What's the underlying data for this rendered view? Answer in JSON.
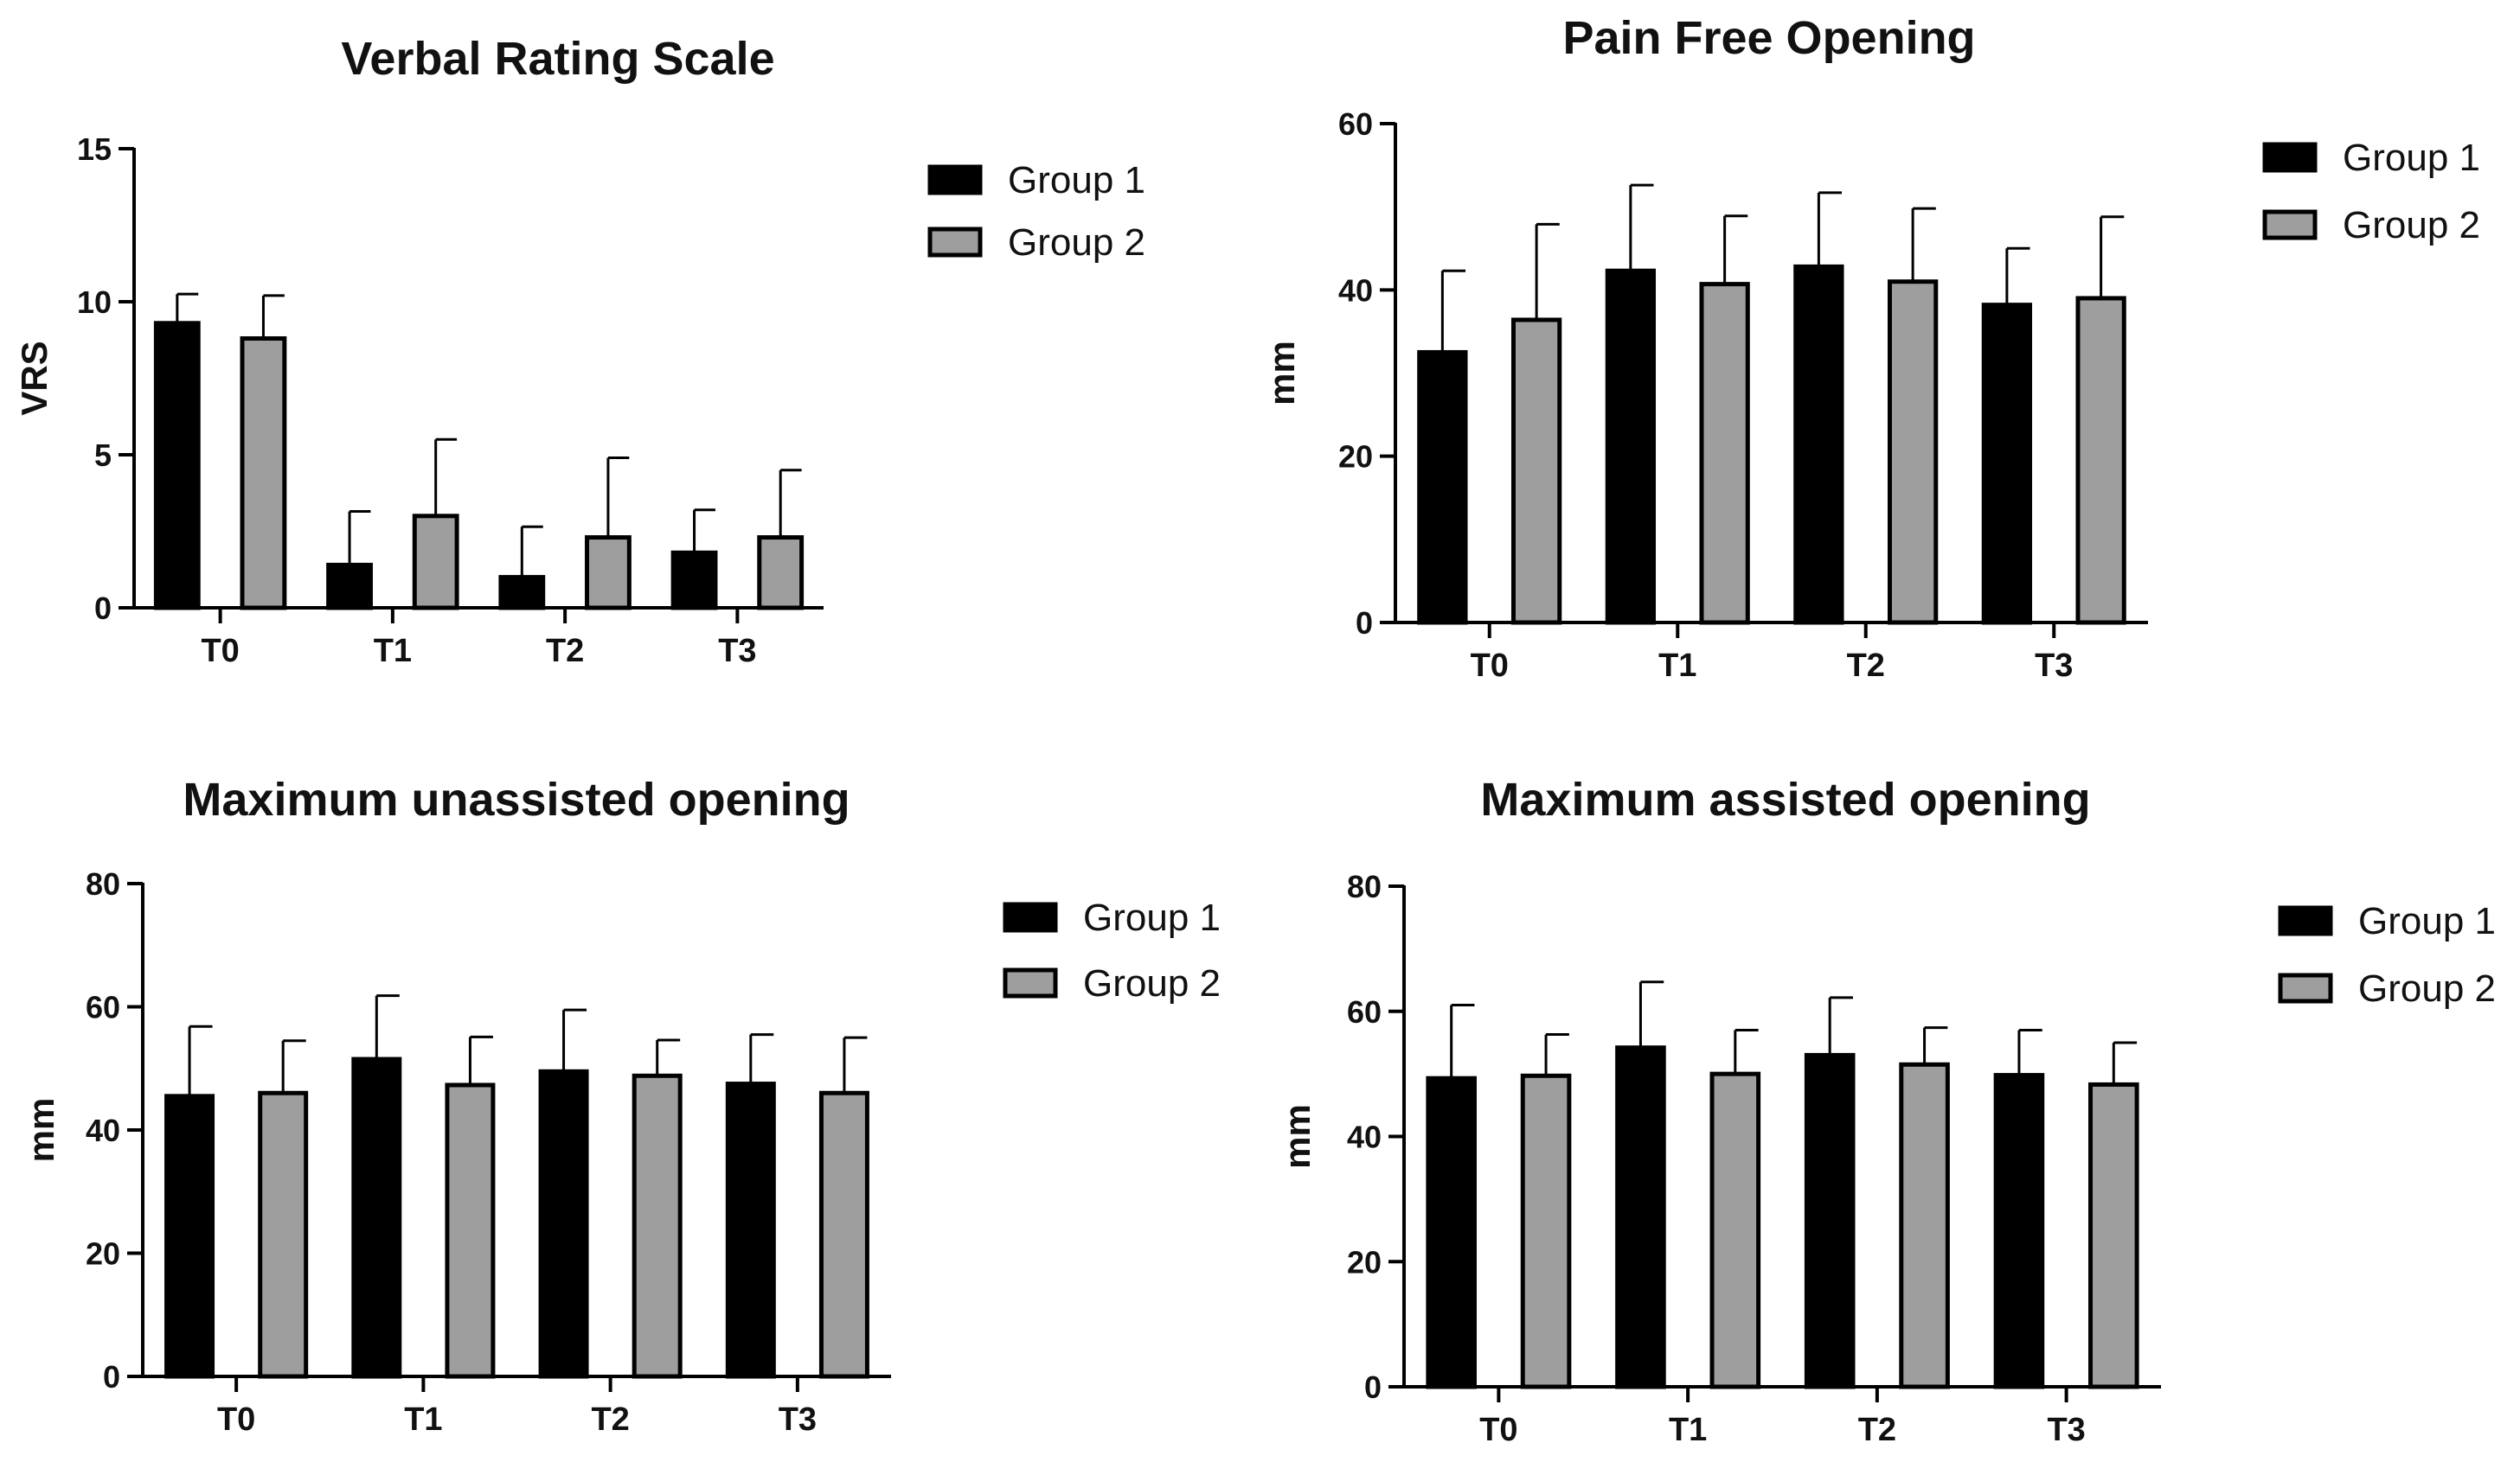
{
  "colors": {
    "group1": "#000000",
    "group2": "#9e9e9e",
    "axis": "#000000"
  },
  "chart_data": [
    {
      "type": "bar",
      "title": "Verbal Rating Scale",
      "xlabel": "",
      "ylabel": "VRS",
      "ylim": [
        0,
        15
      ],
      "yticks": [
        0,
        5,
        10,
        15
      ],
      "categories": [
        "T0",
        "T1",
        "T2",
        "T3"
      ],
      "legend": "right",
      "series": [
        {
          "name": "Group 1",
          "values": [
            9.3,
            1.4,
            1.0,
            1.8
          ],
          "errors": [
            0.95,
            1.75,
            1.65,
            1.4
          ]
        },
        {
          "name": "Group 2",
          "values": [
            8.8,
            3.0,
            2.3,
            2.3
          ],
          "errors": [
            1.4,
            2.5,
            2.6,
            2.2
          ]
        }
      ]
    },
    {
      "type": "bar",
      "title": "Pain Free Opening",
      "xlabel": "",
      "ylabel": "mm",
      "ylim": [
        0,
        60
      ],
      "yticks": [
        0,
        20,
        40,
        60
      ],
      "categories": [
        "T0",
        "T1",
        "T2",
        "T3"
      ],
      "legend": "right",
      "series": [
        {
          "name": "Group 1",
          "values": [
            32.5,
            42.3,
            42.8,
            38.2
          ],
          "errors": [
            9.8,
            10.3,
            8.9,
            6.8
          ]
        },
        {
          "name": "Group 2",
          "values": [
            36.4,
            40.7,
            41.0,
            39.0
          ],
          "errors": [
            11.5,
            8.2,
            8.8,
            9.8
          ]
        }
      ]
    },
    {
      "type": "bar",
      "title": "Maximum unassisted opening",
      "xlabel": "",
      "ylabel": "mm",
      "ylim": [
        0,
        80
      ],
      "yticks": [
        0,
        20,
        40,
        60,
        80
      ],
      "categories": [
        "T0",
        "T1",
        "T2",
        "T3"
      ],
      "legend": "right",
      "series": [
        {
          "name": "Group 1",
          "values": [
            45.5,
            51.5,
            49.5,
            47.5
          ],
          "errors": [
            11.3,
            10.3,
            10.0,
            8.0
          ]
        },
        {
          "name": "Group 2",
          "values": [
            46.0,
            47.3,
            48.8,
            46.0
          ],
          "errors": [
            8.5,
            7.8,
            5.8,
            9.0
          ]
        }
      ]
    },
    {
      "type": "bar",
      "title": "Maximum assisted opening",
      "xlabel": "",
      "ylabel": "mm",
      "ylim": [
        0,
        80
      ],
      "yticks": [
        0,
        20,
        40,
        60,
        80
      ],
      "categories": [
        "T0",
        "T1",
        "T2",
        "T3"
      ],
      "legend": "right",
      "series": [
        {
          "name": "Group 1",
          "values": [
            49.3,
            54.2,
            53.0,
            49.8
          ],
          "errors": [
            11.7,
            10.5,
            9.2,
            7.2
          ]
        },
        {
          "name": "Group 2",
          "values": [
            49.7,
            50.0,
            51.5,
            48.3
          ],
          "errors": [
            6.6,
            7.0,
            5.9,
            6.7
          ]
        }
      ]
    }
  ]
}
